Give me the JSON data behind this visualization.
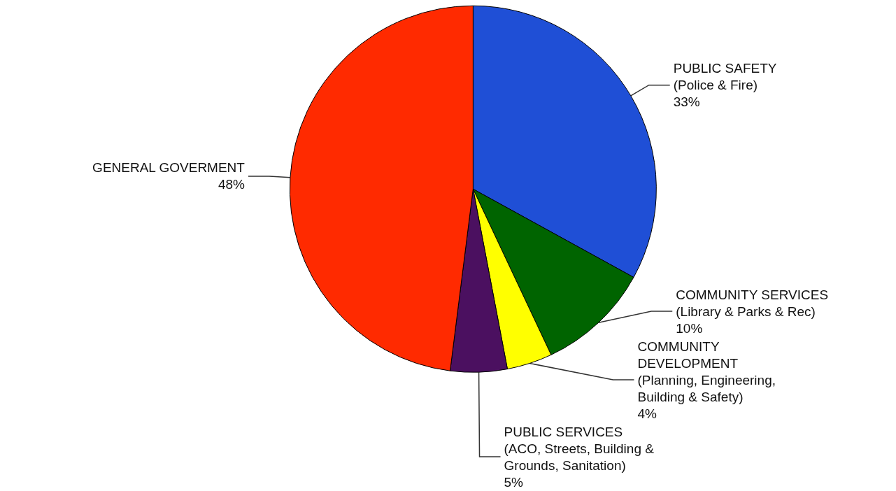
{
  "chart_data": {
    "type": "pie",
    "categories": [
      "PUBLIC SAFETY\n(Police & Fire)",
      "COMMUNITY SERVICES\n(Library & Parks & Rec)",
      "COMMUNITY\nDEVELOPMENT\n(Planning, Engineering,\nBuilding & Safety)",
      "PUBLIC SERVICES\n(ACO, Streets, Building &\nGrounds, Sanitation)",
      "GENERAL GOVERMENT"
    ],
    "values": [
      33,
      10,
      4,
      5,
      48
    ],
    "value_labels": [
      "33%",
      "10%",
      "4%",
      "5%",
      "48%"
    ],
    "colors": [
      "#1f4fd6",
      "#006400",
      "#ffff00",
      "#4b1060",
      "#ff2a00"
    ],
    "legend": false
  }
}
